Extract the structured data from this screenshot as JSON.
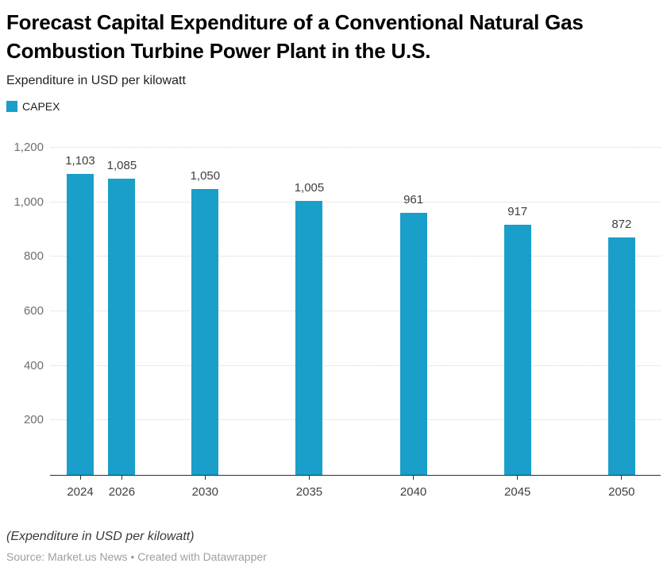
{
  "header": {
    "title": "Forecast Capital Expenditure of a Conventional Natural Gas Combustion Turbine Power Plant in the U.S.",
    "subtitle": "Expenditure in USD per kilowatt"
  },
  "legend": {
    "items": [
      {
        "label": "CAPEX",
        "color": "#1A9ECA"
      }
    ]
  },
  "chart_data": {
    "type": "bar",
    "title": "Forecast Capital Expenditure of a Conventional Natural Gas Combustion Turbine Power Plant in the U.S.",
    "subtitle": "Expenditure in USD per kilowatt",
    "xlabel": "",
    "ylabel": "Expenditure in USD per kilowatt",
    "categories": [
      2024,
      2026,
      2030,
      2035,
      2040,
      2045,
      2050
    ],
    "values": [
      1103,
      1085,
      1050,
      1005,
      961,
      917,
      872
    ],
    "value_labels": [
      "1,103",
      "1,085",
      "1,050",
      "1,005",
      "961",
      "917",
      "872"
    ],
    "series_name": "CAPEX",
    "bar_color": "#1A9ECA",
    "ylim": [
      0,
      1200
    ],
    "ytick_interval": 200,
    "ytick_labels": {
      "200": "200",
      "400": "400",
      "600": "600",
      "800": "800",
      "1000": "1,000",
      "1200": "1,200"
    },
    "x_axis_type": "linear-years",
    "grid": "horizontal-dotted",
    "legend_position": "top-left"
  },
  "footer": {
    "note": "(Expenditure in USD per kilowatt)",
    "source_prefix": "Source: ",
    "source_name": "Market.us News",
    "separator": " • ",
    "created_with": "Created with Datawrapper"
  }
}
